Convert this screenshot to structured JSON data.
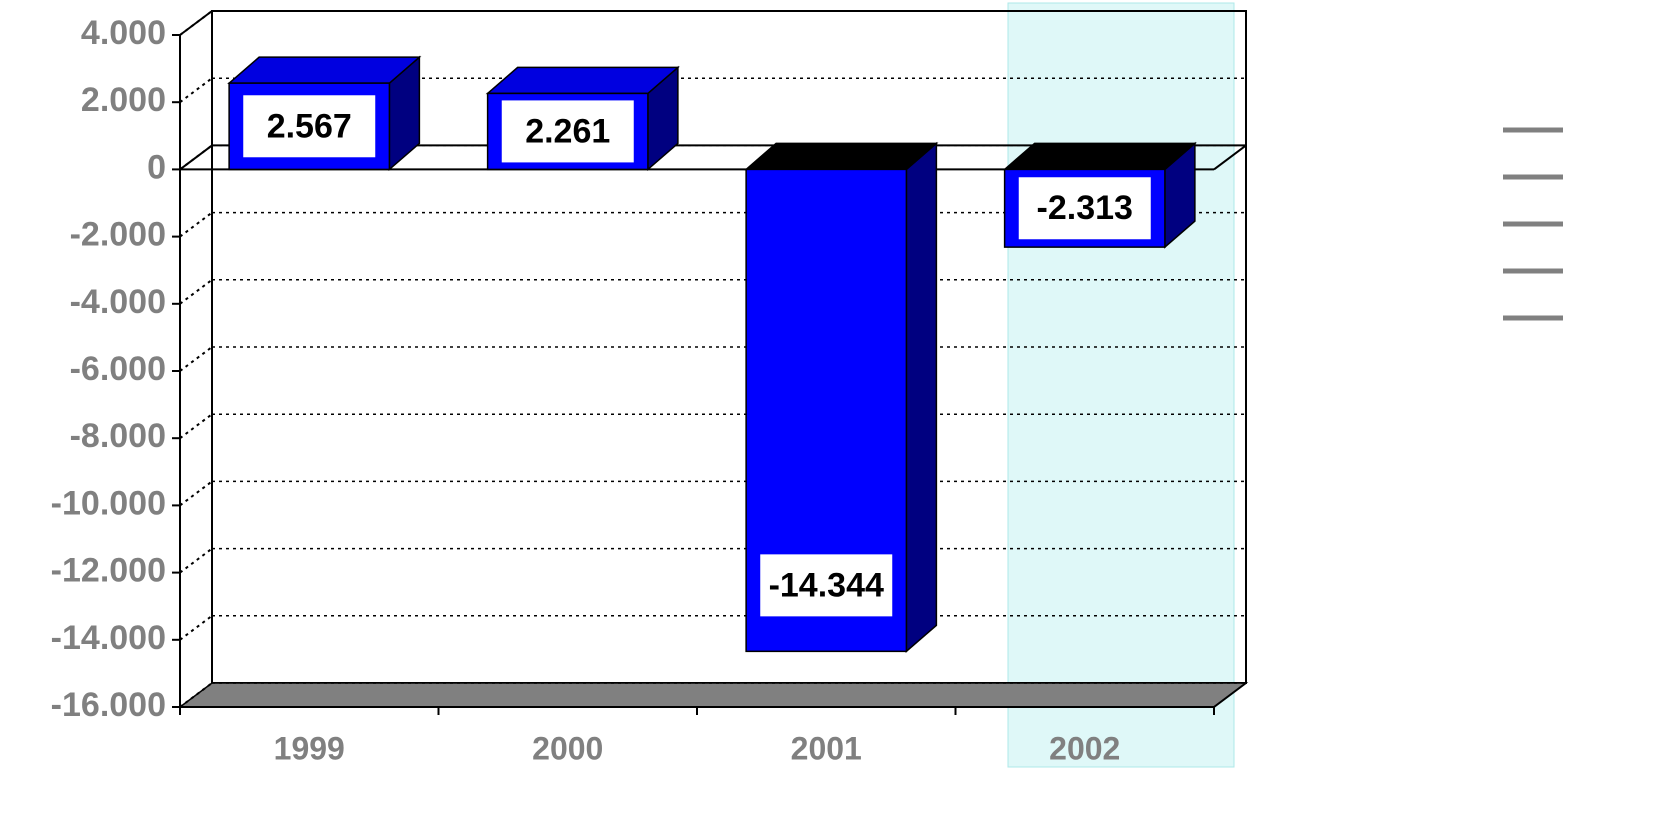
{
  "chart_data": {
    "type": "bar3d",
    "categories": [
      "1999",
      "2000",
      "2001",
      "2002"
    ],
    "values": [
      2567,
      2261,
      -14344,
      -2313
    ],
    "value_labels": [
      "2.567",
      "2.261",
      "-14.344",
      "-2.313"
    ],
    "color": "#0000ff",
    "ylim": [
      -16000,
      4000
    ],
    "yticks": [
      {
        "value": 4000,
        "label": "4.000"
      },
      {
        "value": 2000,
        "label": "2.000"
      },
      0,
      {
        "value": -2000,
        "label": "-2.000"
      },
      {
        "value": -4000,
        "label": "-4.000"
      },
      {
        "value": -6000,
        "label": "-6.000"
      },
      {
        "value": -8000,
        "label": "-8.000"
      },
      {
        "value": -10000,
        "label": "-10.000"
      },
      {
        "value": -12000,
        "label": "-12.000"
      },
      {
        "value": -14000,
        "label": "-14.000"
      },
      {
        "value": -16000,
        "label": "-16.000"
      }
    ],
    "grid": true
  }
}
